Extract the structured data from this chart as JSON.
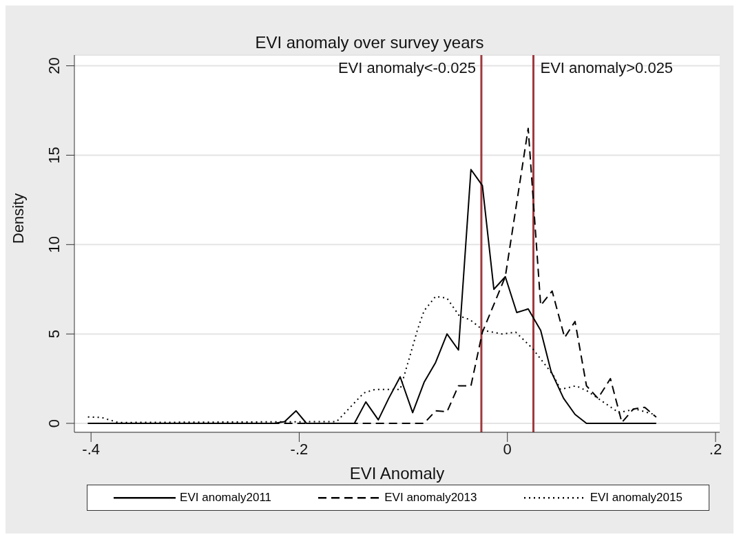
{
  "chart_data": {
    "type": "line",
    "title": "EVI anomaly over survey years",
    "xlabel": "EVI Anomaly",
    "ylabel": "Density",
    "xlim": [
      -0.416,
      0.204
    ],
    "xticks": [
      {
        "value": -0.4,
        "label": "-.4"
      },
      {
        "value": -0.2,
        "label": "-.2"
      },
      0,
      {
        "value": 0.2,
        "label": ".2"
      }
    ],
    "ylim": [
      -0.5,
      20.6
    ],
    "yticks": [
      0,
      5,
      10,
      15,
      20
    ],
    "grid": "y",
    "legend": "bottom",
    "marker": "none",
    "ref_lines": [
      {
        "axis": "x",
        "value": -0.025,
        "label": "EVI anomaly<-0.025",
        "color": "#a0393d"
      },
      {
        "axis": "x",
        "value": 0.025,
        "label": "EVI anomaly>0.025",
        "color": "#a0393d"
      }
    ],
    "series": [
      {
        "name": "EVI anomaly2011",
        "color": "#000000",
        "line_style": "solid",
        "x": [
          -0.403,
          -0.224,
          -0.214,
          -0.203,
          -0.193,
          -0.147,
          -0.136,
          -0.124,
          -0.114,
          -0.103,
          -0.091,
          -0.08,
          -0.069,
          -0.058,
          -0.047,
          -0.035,
          -0.024,
          -0.013,
          -0.002,
          0.009,
          0.02,
          0.032,
          0.042,
          0.054,
          0.065,
          0.076,
          0.143
        ],
        "values": [
          0,
          0,
          0.1,
          0.7,
          0,
          0,
          1.2,
          0.2,
          1.4,
          2.6,
          0.6,
          2.3,
          3.4,
          5.0,
          4.1,
          14.2,
          13.3,
          7.5,
          8.2,
          6.2,
          6.4,
          5.2,
          2.9,
          1.4,
          0.5,
          0,
          0
        ]
      },
      {
        "name": "EVI anomaly2013",
        "color": "#000000",
        "line_style": "dashed",
        "x": [
          -0.403,
          -0.08,
          -0.069,
          -0.058,
          -0.047,
          -0.035,
          -0.024,
          -0.002,
          0.02,
          0.032,
          0.043,
          0.055,
          0.065,
          0.076,
          0.087,
          0.099,
          0.11,
          0.121,
          0.132,
          0.143
        ],
        "values": [
          0,
          0,
          0.7,
          0.65,
          2.1,
          2.1,
          5.1,
          8.2,
          16.5,
          6.6,
          7.4,
          4.8,
          5.7,
          2.1,
          1.4,
          2.5,
          0.05,
          0.8,
          0.9,
          0.35
        ]
      },
      {
        "name": "EVI anomaly2015",
        "color": "#000000",
        "line_style": "dotted",
        "x": [
          -0.403,
          -0.39,
          -0.374,
          -0.164,
          -0.138,
          -0.127,
          -0.103,
          -0.086,
          -0.08,
          -0.069,
          -0.058,
          -0.046,
          -0.036,
          -0.023,
          -0.005,
          0.008,
          0.024,
          0.044,
          0.051,
          0.066,
          0.077,
          0.092,
          0.107,
          0.123,
          0.141
        ],
        "values": [
          0.36,
          0.33,
          0.05,
          0.1,
          1.7,
          1.9,
          1.9,
          5.3,
          6.3,
          7.1,
          7.0,
          6.0,
          5.8,
          5.2,
          5.0,
          5.1,
          4.2,
          2.7,
          1.9,
          2.1,
          1.8,
          1.2,
          0.6,
          0.8,
          0.5
        ]
      }
    ]
  }
}
